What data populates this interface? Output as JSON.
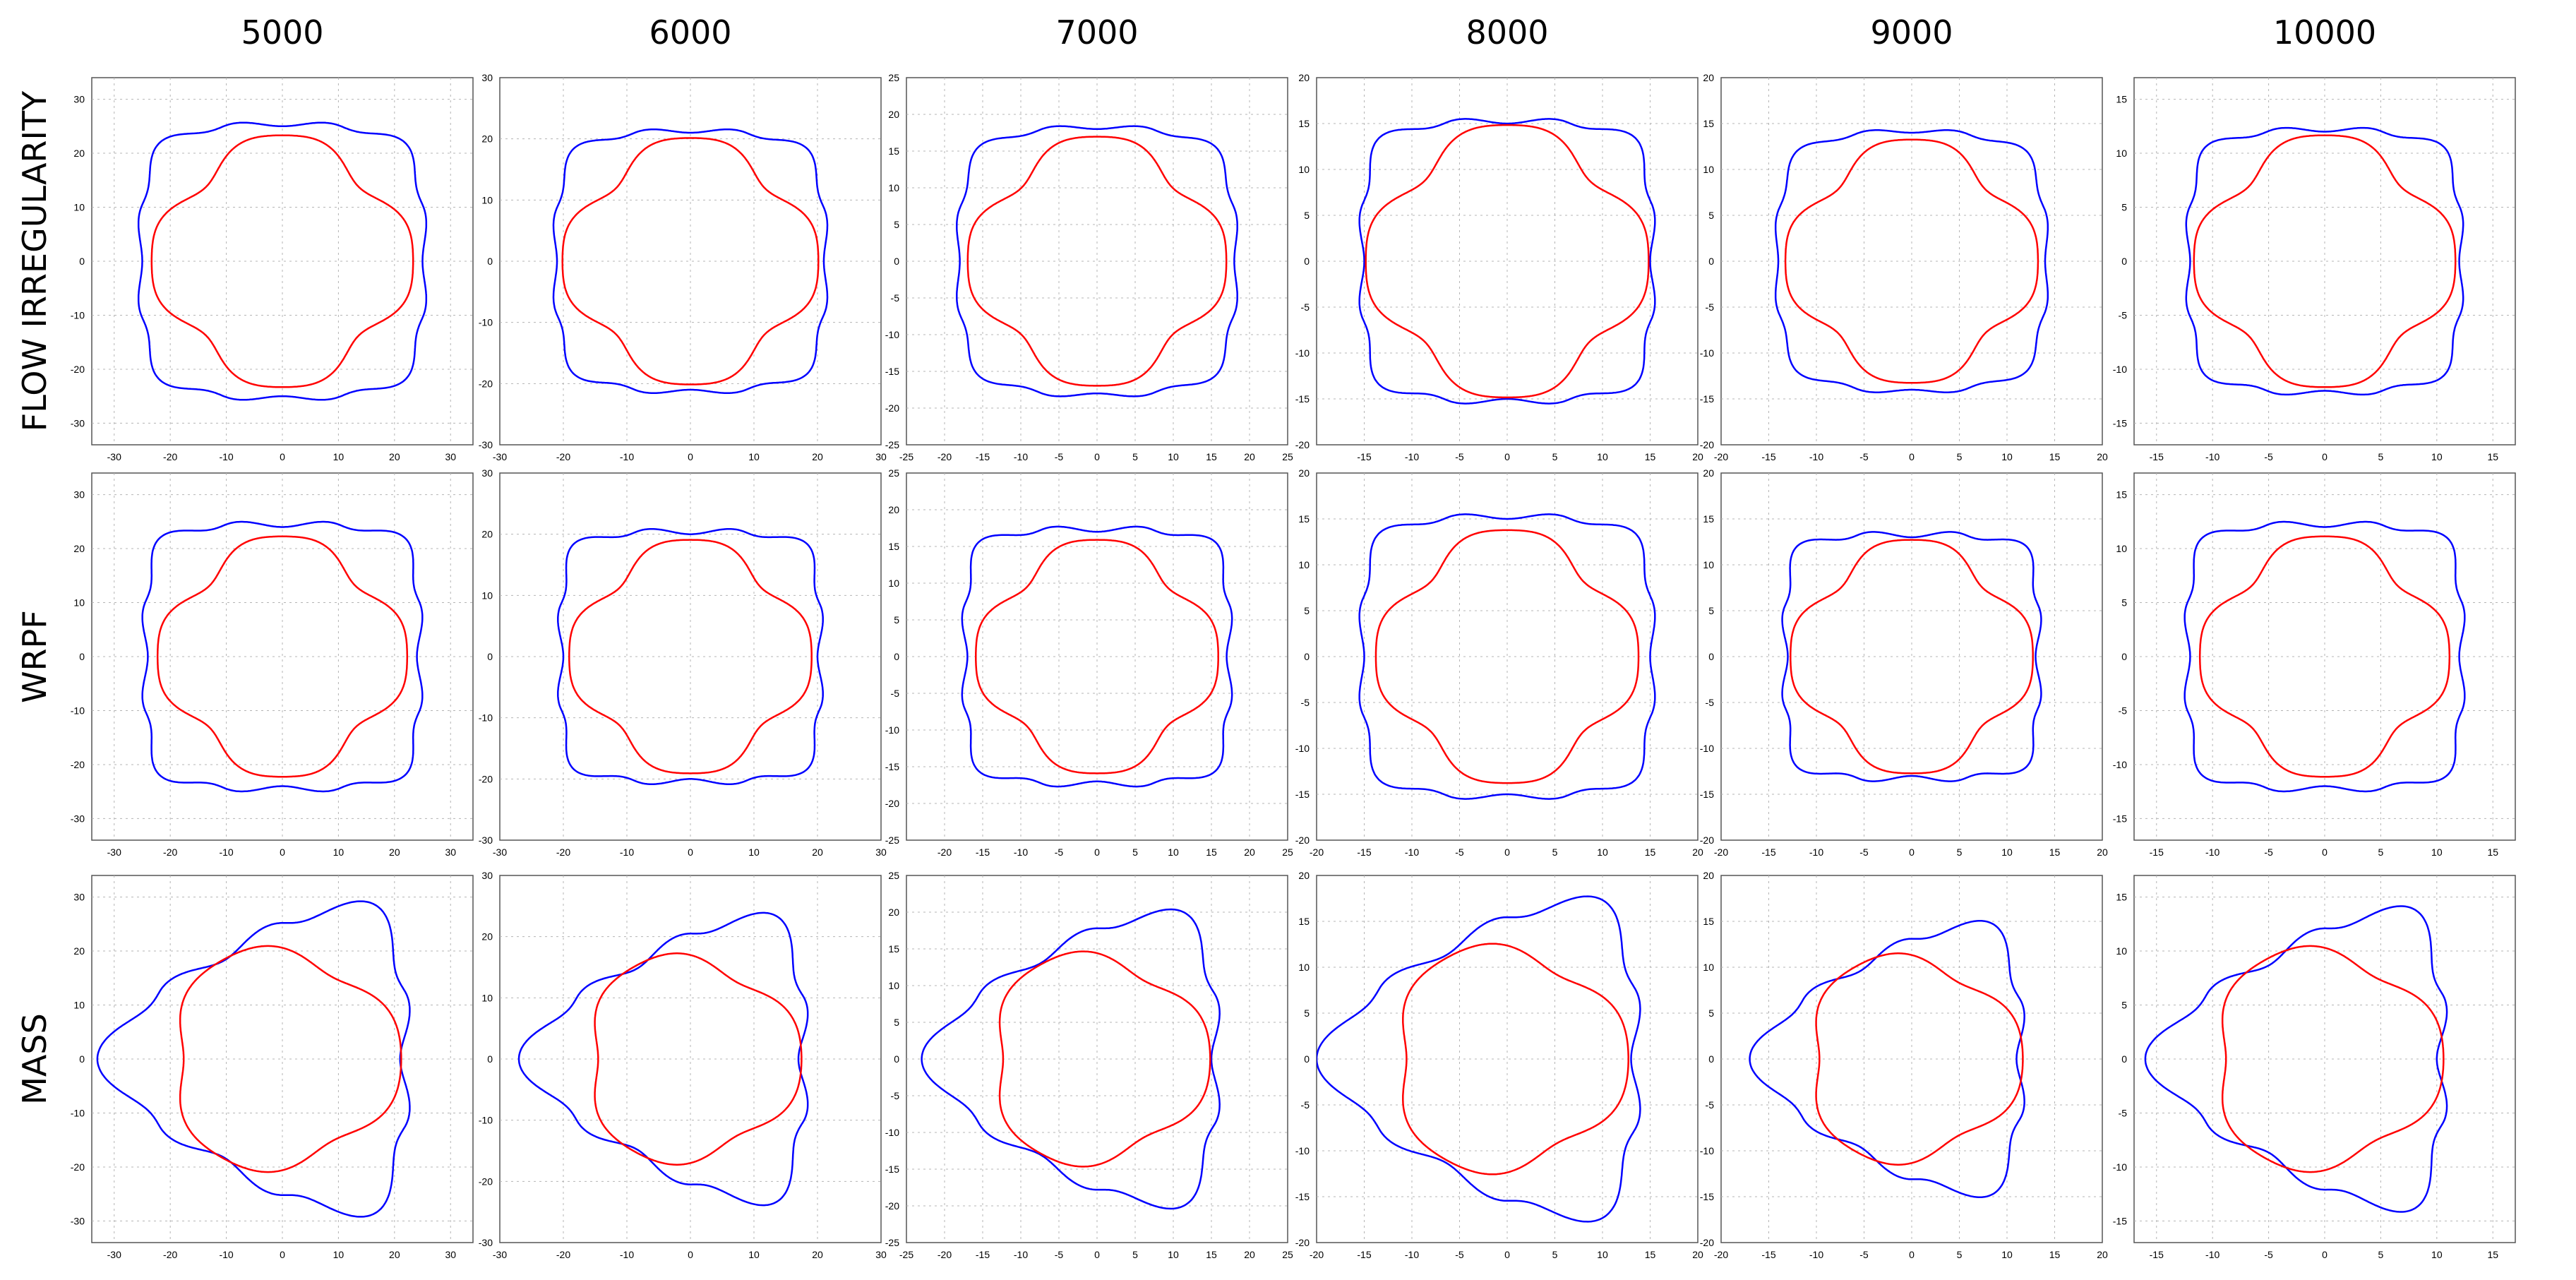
{
  "figure": {
    "column_titles": [
      "5000",
      "6000",
      "7000",
      "8000",
      "9000",
      "10000"
    ],
    "row_titles": [
      "FLOW IRREGULARITY",
      "WRPF",
      "MASS"
    ],
    "colors": {
      "outer_profile": "#0000ff",
      "inner_profile": "#ff0000",
      "grid": "#b4b4b4",
      "axes": "#555555",
      "text": "#000000"
    }
  },
  "chart_data": [
    {
      "type": "line",
      "row": "FLOW IRREGULARITY",
      "column": "5000",
      "xlim": [
        -34,
        34
      ],
      "ylim": [
        -34,
        34
      ],
      "xticks": [
        -30,
        -20,
        -10,
        0,
        10,
        20,
        30
      ],
      "yticks": [
        -30,
        -20,
        -10,
        0,
        10,
        20,
        30
      ],
      "grid": true,
      "series": [
        {
          "name": "outer",
          "color": "#0000ff",
          "lobes": 4,
          "outer_radius": 31,
          "inner_radius": 25
        },
        {
          "name": "inner",
          "color": "#ff0000",
          "lobes": 4,
          "radius": 22
        }
      ]
    },
    {
      "type": "line",
      "row": "FLOW IRREGULARITY",
      "column": "6000",
      "xlim": [
        -30,
        30
      ],
      "ylim": [
        -30,
        30
      ],
      "xticks": [
        -30,
        -20,
        -10,
        0,
        10,
        20,
        30
      ],
      "yticks": [
        -30,
        -20,
        -10,
        0,
        10,
        20,
        30
      ],
      "grid": true,
      "series": [
        {
          "name": "outer",
          "color": "#0000ff",
          "lobes": 4,
          "outer_radius": 26,
          "inner_radius": 21
        },
        {
          "name": "inner",
          "color": "#ff0000",
          "lobes": 4,
          "radius": 19
        }
      ]
    },
    {
      "type": "line",
      "row": "FLOW IRREGULARITY",
      "column": "7000",
      "xlim": [
        -25,
        25
      ],
      "ylim": [
        -25,
        25
      ],
      "xticks": [
        -25,
        -20,
        -15,
        -10,
        -5,
        0,
        5,
        10,
        15,
        20,
        25
      ],
      "yticks": [
        -25,
        -20,
        -15,
        -10,
        -5,
        0,
        5,
        10,
        15,
        20,
        25
      ],
      "grid": true,
      "series": [
        {
          "name": "outer",
          "color": "#0000ff",
          "lobes": 4,
          "outer_radius": 22,
          "inner_radius": 18
        },
        {
          "name": "inner",
          "color": "#ff0000",
          "lobes": 4,
          "radius": 16
        }
      ]
    },
    {
      "type": "line",
      "row": "FLOW IRREGULARITY",
      "column": "8000",
      "xlim": [
        -20,
        20
      ],
      "ylim": [
        -20,
        20
      ],
      "xticks": [
        -15,
        -10,
        -5,
        0,
        5,
        10,
        15,
        20
      ],
      "yticks": [
        -20,
        -15,
        -10,
        -5,
        0,
        5,
        10,
        15,
        20
      ],
      "grid": true,
      "series": [
        {
          "name": "outer",
          "color": "#0000ff",
          "lobes": 4,
          "outer_radius": 19,
          "inner_radius": 15
        },
        {
          "name": "inner",
          "color": "#ff0000",
          "lobes": 4,
          "radius": 14
        }
      ]
    },
    {
      "type": "line",
      "row": "FLOW IRREGULARITY",
      "column": "9000",
      "xlim": [
        -20,
        20
      ],
      "ylim": [
        -20,
        20
      ],
      "xticks": [
        -20,
        -15,
        -10,
        -5,
        0,
        5,
        10,
        15,
        20
      ],
      "yticks": [
        -20,
        -15,
        -10,
        -5,
        0,
        5,
        10,
        15,
        20
      ],
      "grid": true,
      "series": [
        {
          "name": "outer",
          "color": "#0000ff",
          "lobes": 4,
          "outer_radius": 17,
          "inner_radius": 14
        },
        {
          "name": "inner",
          "color": "#ff0000",
          "lobes": 4,
          "radius": 12.5
        }
      ]
    },
    {
      "type": "line",
      "row": "FLOW IRREGULARITY",
      "column": "10000",
      "xlim": [
        -17,
        17
      ],
      "ylim": [
        -17,
        17
      ],
      "xticks": [
        -15,
        -10,
        -5,
        0,
        5,
        10,
        15
      ],
      "yticks": [
        -15,
        -10,
        -5,
        0,
        5,
        10,
        15
      ],
      "grid": true,
      "series": [
        {
          "name": "outer",
          "color": "#0000ff",
          "lobes": 4,
          "outer_radius": 15,
          "inner_radius": 12
        },
        {
          "name": "inner",
          "color": "#ff0000",
          "lobes": 4,
          "radius": 11
        }
      ]
    },
    {
      "type": "line",
      "row": "WRPF",
      "column": "5000",
      "xlim": [
        -34,
        34
      ],
      "ylim": [
        -34,
        34
      ],
      "xticks": [
        -30,
        -20,
        -10,
        0,
        10,
        20,
        30
      ],
      "yticks": [
        -30,
        -20,
        -10,
        0,
        10,
        20,
        30
      ],
      "grid": true,
      "series": [
        {
          "name": "outer",
          "color": "#0000ff",
          "lobes": 4,
          "outer_radius": 31,
          "inner_radius": 24
        },
        {
          "name": "inner",
          "color": "#ff0000",
          "lobes": 4,
          "radius": 21
        }
      ]
    },
    {
      "type": "line",
      "row": "WRPF",
      "column": "6000",
      "xlim": [
        -30,
        30
      ],
      "ylim": [
        -30,
        30
      ],
      "xticks": [
        -30,
        -20,
        -10,
        0,
        10,
        20,
        30
      ],
      "yticks": [
        -30,
        -20,
        -10,
        0,
        10,
        20,
        30
      ],
      "grid": true,
      "series": [
        {
          "name": "outer",
          "color": "#0000ff",
          "lobes": 4,
          "outer_radius": 26,
          "inner_radius": 20
        },
        {
          "name": "inner",
          "color": "#ff0000",
          "lobes": 4,
          "radius": 18
        }
      ]
    },
    {
      "type": "line",
      "row": "WRPF",
      "column": "7000",
      "xlim": [
        -25,
        25
      ],
      "ylim": [
        -25,
        25
      ],
      "xticks": [
        -20,
        -15,
        -10,
        -5,
        0,
        5,
        10,
        15,
        20,
        25
      ],
      "yticks": [
        -25,
        -20,
        -15,
        -10,
        -5,
        0,
        5,
        10,
        15,
        20,
        25
      ],
      "grid": true,
      "series": [
        {
          "name": "outer",
          "color": "#0000ff",
          "lobes": 4,
          "outer_radius": 22,
          "inner_radius": 17
        },
        {
          "name": "inner",
          "color": "#ff0000",
          "lobes": 4,
          "radius": 15
        }
      ]
    },
    {
      "type": "line",
      "row": "WRPF",
      "column": "8000",
      "xlim": [
        -20,
        20
      ],
      "ylim": [
        -20,
        20
      ],
      "xticks": [
        -20,
        -15,
        -10,
        -5,
        0,
        5,
        10,
        15,
        20
      ],
      "yticks": [
        -20,
        -15,
        -10,
        -5,
        0,
        5,
        10,
        15,
        20
      ],
      "grid": true,
      "series": [
        {
          "name": "outer",
          "color": "#0000ff",
          "lobes": 4,
          "outer_radius": 19,
          "inner_radius": 15
        },
        {
          "name": "inner",
          "color": "#ff0000",
          "lobes": 4,
          "radius": 13
        }
      ]
    },
    {
      "type": "line",
      "row": "WRPF",
      "column": "9000",
      "xlim": [
        -20,
        20
      ],
      "ylim": [
        -20,
        20
      ],
      "xticks": [
        -20,
        -15,
        -10,
        -5,
        0,
        5,
        10,
        15,
        20
      ],
      "yticks": [
        -20,
        -15,
        -10,
        -5,
        0,
        5,
        10,
        15,
        20
      ],
      "grid": true,
      "series": [
        {
          "name": "outer",
          "color": "#0000ff",
          "lobes": 4,
          "outer_radius": 17,
          "inner_radius": 13
        },
        {
          "name": "inner",
          "color": "#ff0000",
          "lobes": 4,
          "radius": 12
        }
      ]
    },
    {
      "type": "line",
      "row": "WRPF",
      "column": "10000",
      "xlim": [
        -17,
        17
      ],
      "ylim": [
        -17,
        17
      ],
      "xticks": [
        -15,
        -10,
        -5,
        0,
        5,
        10,
        15
      ],
      "yticks": [
        -15,
        -10,
        -5,
        0,
        5,
        10,
        15
      ],
      "grid": true,
      "series": [
        {
          "name": "outer",
          "color": "#0000ff",
          "lobes": 4,
          "outer_radius": 15.5,
          "inner_radius": 12
        },
        {
          "name": "inner",
          "color": "#ff0000",
          "lobes": 4,
          "radius": 10.5
        }
      ]
    },
    {
      "type": "line",
      "row": "MASS",
      "column": "5000",
      "xlim": [
        -34,
        34
      ],
      "ylim": [
        -34,
        34
      ],
      "xticks": [
        -30,
        -20,
        -10,
        0,
        10,
        20,
        30
      ],
      "yticks": [
        -30,
        -20,
        -10,
        0,
        10,
        20,
        30
      ],
      "grid": true,
      "series": [
        {
          "name": "outer",
          "color": "#0000ff",
          "lobes": 3,
          "outer_radius": 33,
          "inner_radius": 21
        },
        {
          "name": "inner",
          "color": "#ff0000",
          "lobes": 3,
          "radius": 20
        }
      ]
    },
    {
      "type": "line",
      "row": "MASS",
      "column": "6000",
      "xlim": [
        -30,
        30
      ],
      "ylim": [
        -30,
        30
      ],
      "xticks": [
        -30,
        -20,
        -10,
        0,
        10,
        20,
        30
      ],
      "yticks": [
        -30,
        -20,
        -10,
        0,
        10,
        20,
        30
      ],
      "grid": true,
      "series": [
        {
          "name": "outer",
          "color": "#0000ff",
          "lobes": 3,
          "outer_radius": 27,
          "inner_radius": 17
        },
        {
          "name": "inner",
          "color": "#ff0000",
          "lobes": 3,
          "radius": 16.5
        }
      ]
    },
    {
      "type": "line",
      "row": "MASS",
      "column": "7000",
      "xlim": [
        -25,
        25
      ],
      "ylim": [
        -25,
        25
      ],
      "xticks": [
        -25,
        -20,
        -15,
        -10,
        -5,
        0,
        5,
        10,
        15,
        20,
        25
      ],
      "yticks": [
        -25,
        -20,
        -15,
        -10,
        -5,
        0,
        5,
        10,
        15,
        20,
        25
      ],
      "grid": true,
      "series": [
        {
          "name": "outer",
          "color": "#0000ff",
          "lobes": 3,
          "outer_radius": 23,
          "inner_radius": 15
        },
        {
          "name": "inner",
          "color": "#ff0000",
          "lobes": 3,
          "radius": 14
        }
      ]
    },
    {
      "type": "line",
      "row": "MASS",
      "column": "8000",
      "xlim": [
        -20,
        20
      ],
      "ylim": [
        -20,
        20
      ],
      "xticks": [
        -20,
        -15,
        -10,
        -5,
        0,
        5,
        10,
        15,
        20
      ],
      "yticks": [
        -20,
        -15,
        -10,
        -5,
        0,
        5,
        10,
        15,
        20
      ],
      "grid": true,
      "series": [
        {
          "name": "outer",
          "color": "#0000ff",
          "lobes": 3,
          "outer_radius": 20,
          "inner_radius": 13
        },
        {
          "name": "inner",
          "color": "#ff0000",
          "lobes": 3,
          "radius": 12
        }
      ]
    },
    {
      "type": "line",
      "row": "MASS",
      "column": "9000",
      "xlim": [
        -20,
        20
      ],
      "ylim": [
        -20,
        20
      ],
      "xticks": [
        -20,
        -15,
        -10,
        -5,
        0,
        5,
        10,
        15,
        20
      ],
      "yticks": [
        -20,
        -15,
        -10,
        -5,
        0,
        5,
        10,
        15,
        20
      ],
      "grid": true,
      "series": [
        {
          "name": "outer",
          "color": "#0000ff",
          "lobes": 3,
          "outer_radius": 17,
          "inner_radius": 11
        },
        {
          "name": "inner",
          "color": "#ff0000",
          "lobes": 3,
          "radius": 11
        }
      ]
    },
    {
      "type": "line",
      "row": "MASS",
      "column": "10000",
      "xlim": [
        -17,
        17
      ],
      "ylim": [
        -17,
        17
      ],
      "xticks": [
        -15,
        -10,
        -5,
        0,
        5,
        10,
        15
      ],
      "yticks": [
        -15,
        -10,
        -5,
        0,
        5,
        10,
        15
      ],
      "grid": true,
      "series": [
        {
          "name": "outer",
          "color": "#0000ff",
          "lobes": 3,
          "outer_radius": 16,
          "inner_radius": 10
        },
        {
          "name": "inner",
          "color": "#ff0000",
          "lobes": 3,
          "radius": 10
        }
      ]
    }
  ]
}
